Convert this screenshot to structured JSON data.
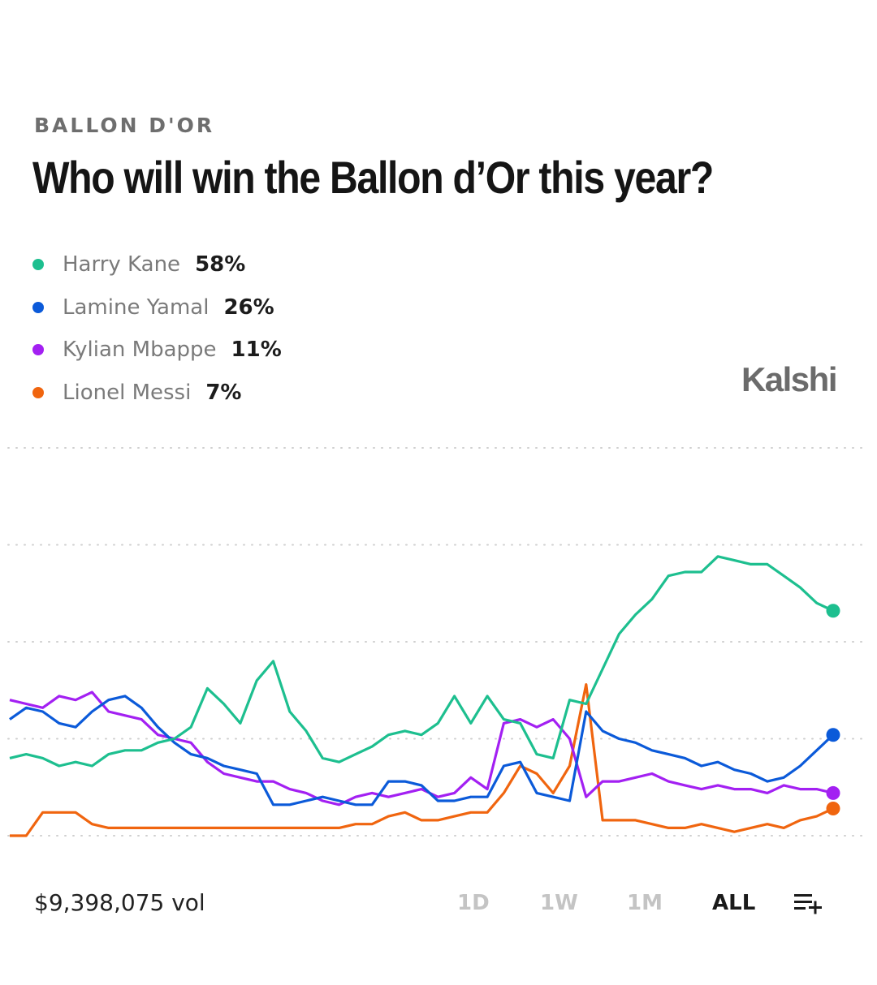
{
  "header": {
    "kicker": "BALLON D'OR",
    "title": "Who will win the Ballon d’Or this year?",
    "brand": "Kalshi"
  },
  "legend": [
    {
      "name": "Harry Kane",
      "pct": "58%",
      "color": "#1dbf8f"
    },
    {
      "name": "Lamine Yamal",
      "pct": "26%",
      "color": "#0b5ad9"
    },
    {
      "name": "Kylian Mbappe",
      "pct": "11%",
      "color": "#a320f2"
    },
    {
      "name": "Lionel Messi",
      "pct": "7%",
      "color": "#f0650f"
    }
  ],
  "footer": {
    "volume": "$9,398,075 vol",
    "ranges": [
      "1D",
      "1W",
      "1M",
      "ALL"
    ],
    "active_range": "ALL",
    "menu_icon": "list-add-icon"
  },
  "chart_data": {
    "type": "line",
    "ylim": [
      0,
      100
    ],
    "grid": true,
    "x": [
      0,
      1,
      2,
      3,
      4,
      5,
      6,
      7,
      8,
      9,
      10,
      11,
      12,
      13,
      14,
      15,
      16,
      17,
      18,
      19,
      20,
      21,
      22,
      23,
      24,
      25,
      26,
      27,
      28,
      29,
      30,
      31,
      32,
      33,
      34,
      35,
      36,
      37,
      38,
      39,
      40,
      41,
      42,
      43,
      44,
      45,
      46,
      47,
      48,
      49,
      50
    ],
    "series": [
      {
        "name": "Harry Kane",
        "color": "#1dbf8f",
        "values": [
          20,
          21,
          20,
          18,
          19,
          18,
          21,
          22,
          22,
          24,
          25,
          28,
          38,
          34,
          29,
          40,
          45,
          32,
          27,
          20,
          19,
          21,
          23,
          26,
          27,
          26,
          29,
          36,
          29,
          36,
          30,
          29,
          21,
          20,
          35,
          34,
          43,
          52,
          57,
          61,
          67,
          68,
          68,
          72,
          71,
          70,
          70,
          67,
          64,
          60,
          58
        ]
      },
      {
        "name": "Lamine Yamal",
        "color": "#0b5ad9",
        "values": [
          30,
          33,
          32,
          29,
          28,
          32,
          35,
          36,
          33,
          28,
          24,
          21,
          20,
          18,
          17,
          16,
          8,
          8,
          9,
          10,
          9,
          8,
          8,
          14,
          14,
          13,
          9,
          9,
          10,
          10,
          18,
          19,
          11,
          10,
          9,
          32,
          27,
          25,
          24,
          22,
          21,
          20,
          18,
          19,
          17,
          16,
          14,
          15,
          18,
          22,
          26
        ]
      },
      {
        "name": "Kylian Mbappe",
        "color": "#a320f2",
        "values": [
          35,
          34,
          33,
          36,
          35,
          37,
          32,
          31,
          30,
          26,
          25,
          24,
          19,
          16,
          15,
          14,
          14,
          12,
          11,
          9,
          8,
          10,
          11,
          10,
          11,
          12,
          10,
          11,
          15,
          12,
          29,
          30,
          28,
          30,
          25,
          10,
          14,
          14,
          15,
          16,
          14,
          13,
          12,
          13,
          12,
          12,
          11,
          13,
          12,
          12,
          11
        ]
      },
      {
        "name": "Lionel Messi",
        "color": "#f0650f",
        "values": [
          0,
          0,
          6,
          6,
          6,
          3,
          2,
          2,
          2,
          2,
          2,
          2,
          2,
          2,
          2,
          2,
          2,
          2,
          2,
          2,
          2,
          3,
          3,
          5,
          6,
          4,
          4,
          5,
          6,
          6,
          11,
          18,
          16,
          11,
          18,
          39,
          4,
          4,
          4,
          3,
          2,
          2,
          3,
          2,
          1,
          2,
          3,
          2,
          4,
          5,
          7
        ]
      }
    ]
  }
}
